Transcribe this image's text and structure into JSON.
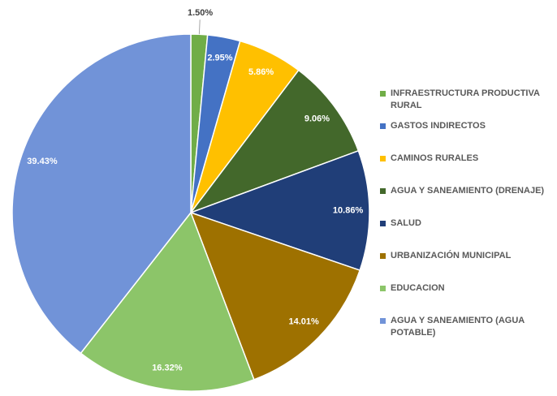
{
  "chart_data": {
    "type": "pie",
    "categories": [
      "INFRAESTRUCTURA PRODUCTIVA RURAL",
      "GASTOS INDIRECTOS",
      "CAMINOS RURALES",
      "AGUA Y SANEAMIENTO (DRENAJE)",
      "SALUD",
      "URBANIZACIÓN MUNICIPAL",
      "EDUCACION",
      "AGUA Y SANEAMIENTO (AGUA POTABLE)"
    ],
    "values": [
      1.5,
      2.95,
      5.86,
      9.06,
      10.86,
      14.01,
      16.32,
      39.43
    ],
    "value_labels": [
      "1.50%",
      "2.95%",
      "5.86%",
      "9.06%",
      "10.86%",
      "14.01%",
      "16.32%",
      "39.43%"
    ],
    "colors": [
      "#70ad47",
      "#4472c4",
      "#ffc000",
      "#43682b",
      "#203e78",
      "#9e7100",
      "#8cc569",
      "#7193d8"
    ],
    "legend": "right"
  }
}
